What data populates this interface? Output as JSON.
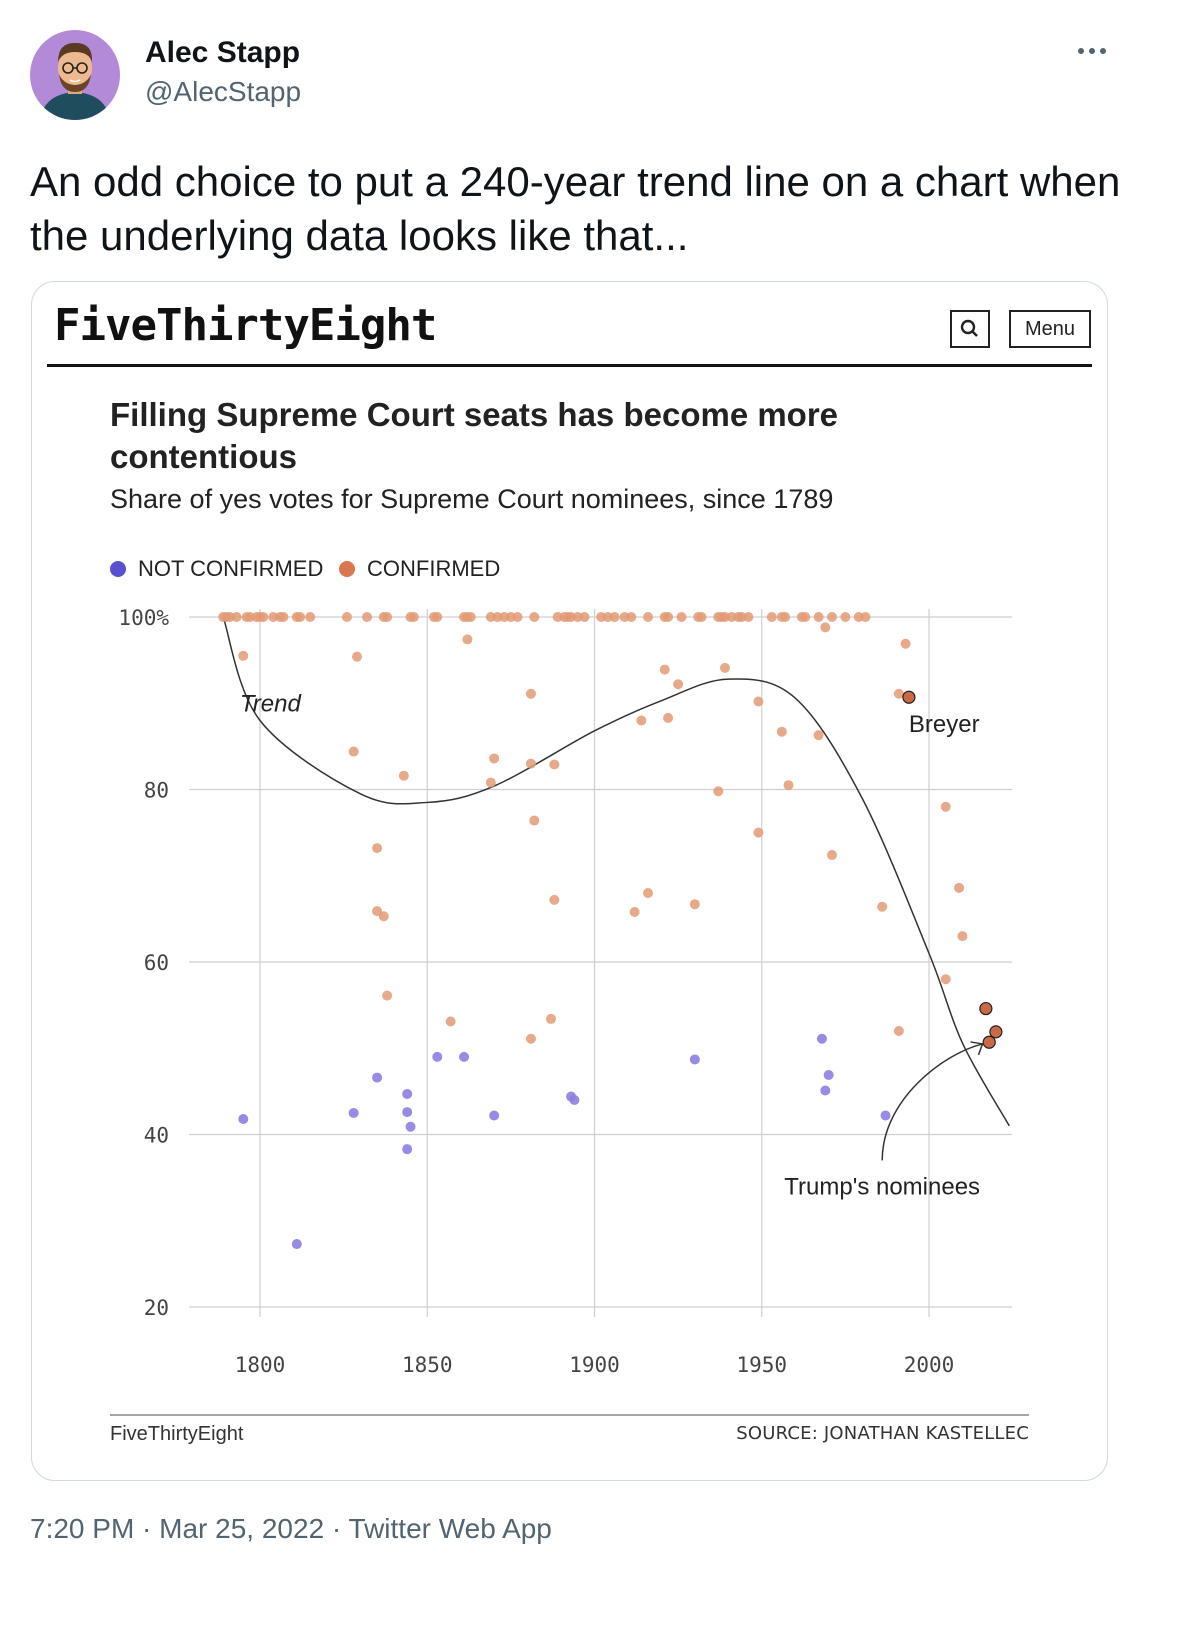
{
  "tweet": {
    "user_name": "Alec Stapp",
    "user_handle": "@AlecStapp",
    "more_icon": "more-horizontal-icon",
    "text": "An odd choice to put a 240-year trend line on a chart when the underlying data looks like that...",
    "timestamp": "7:20 PM · Mar 25, 2022 · Twitter Web App"
  },
  "card": {
    "brand": "FiveThirtyEight",
    "search_icon": "search-icon",
    "menu_label": "Menu",
    "footer_brand": "FiveThirtyEight",
    "footer_source": "SOURCE: JONATHAN KASTELLEC"
  },
  "colors": {
    "confirmed": "#e29a74",
    "not_confirmed": "#8b7fe0",
    "legend_not_confirmed": "#5b4fd1",
    "legend_confirmed": "#d9784e",
    "highlight": "#c76a45"
  },
  "chart_data": {
    "type": "scatter",
    "title": "Filling Supreme Court seats has become more contentious",
    "subtitle": "Share of yes votes for Supreme Court nominees, since 1789",
    "legend": [
      "NOT CONFIRMED",
      "CONFIRMED"
    ],
    "legend_placement": "top-left",
    "xlim": [
      1779,
      2025
    ],
    "ylim": [
      20,
      100
    ],
    "x_ticks": [
      "1800",
      "1850",
      "1900",
      "1950",
      "2000"
    ],
    "y_ticks": [
      "100%",
      "80",
      "60",
      "40",
      "20"
    ],
    "grid": true,
    "series": [
      {
        "name": "CONFIRMED",
        "points": [
          [
            1789,
            100
          ],
          [
            1790,
            100
          ],
          [
            1791,
            100
          ],
          [
            1793,
            100
          ],
          [
            1796,
            100
          ],
          [
            1797,
            100
          ],
          [
            1799,
            100
          ],
          [
            1800,
            100
          ],
          [
            1801,
            100
          ],
          [
            1804,
            100
          ],
          [
            1806,
            100
          ],
          [
            1807,
            100
          ],
          [
            1811,
            100
          ],
          [
            1812,
            100
          ],
          [
            1815,
            100
          ],
          [
            1826,
            100
          ],
          [
            1832,
            100
          ],
          [
            1837,
            100
          ],
          [
            1838,
            100
          ],
          [
            1845,
            100
          ],
          [
            1846,
            100
          ],
          [
            1852,
            100
          ],
          [
            1853,
            100
          ],
          [
            1861,
            100
          ],
          [
            1862,
            100
          ],
          [
            1863,
            100
          ],
          [
            1869,
            100
          ],
          [
            1871,
            100
          ],
          [
            1873,
            100
          ],
          [
            1875,
            100
          ],
          [
            1877,
            100
          ],
          [
            1882,
            100
          ],
          [
            1889,
            100
          ],
          [
            1891,
            100
          ],
          [
            1892,
            100
          ],
          [
            1893,
            100
          ],
          [
            1895,
            100
          ],
          [
            1897,
            100
          ],
          [
            1902,
            100
          ],
          [
            1904,
            100
          ],
          [
            1906,
            100
          ],
          [
            1909,
            100
          ],
          [
            1911,
            100
          ],
          [
            1916,
            100
          ],
          [
            1921,
            100
          ],
          [
            1922,
            100
          ],
          [
            1926,
            100
          ],
          [
            1931,
            100
          ],
          [
            1932,
            100
          ],
          [
            1937,
            100
          ],
          [
            1938,
            100
          ],
          [
            1939,
            100
          ],
          [
            1941,
            100
          ],
          [
            1943,
            100
          ],
          [
            1944,
            100
          ],
          [
            1946,
            100
          ],
          [
            1953,
            100
          ],
          [
            1956,
            100
          ],
          [
            1957,
            100
          ],
          [
            1962,
            100
          ],
          [
            1963,
            100
          ],
          [
            1967,
            100
          ],
          [
            1971,
            100
          ],
          [
            1975,
            100
          ],
          [
            1979,
            100
          ],
          [
            1981,
            100
          ],
          [
            1969,
            98.8
          ],
          [
            1993,
            96.9
          ],
          [
            1862,
            97.4
          ],
          [
            1795,
            95.5
          ],
          [
            1829,
            95.4
          ],
          [
            1921,
            93.9
          ],
          [
            1939,
            94.1
          ],
          [
            1925,
            92.2
          ],
          [
            1881,
            91.1
          ],
          [
            1991,
            91.1
          ],
          [
            1994,
            90.7
          ],
          [
            1949,
            90.2
          ],
          [
            1914,
            88.0
          ],
          [
            1922,
            88.3
          ],
          [
            1956,
            86.7
          ],
          [
            1967,
            86.3
          ],
          [
            1870,
            83.6
          ],
          [
            1881,
            83.0
          ],
          [
            1888,
            82.9
          ],
          [
            1828,
            84.4
          ],
          [
            1843,
            81.6
          ],
          [
            1869,
            80.8
          ],
          [
            1958,
            80.5
          ],
          [
            1937,
            79.8
          ],
          [
            2005,
            78.0
          ],
          [
            1882,
            76.4
          ],
          [
            1949,
            75.0
          ],
          [
            1835,
            73.2
          ],
          [
            1971,
            72.4
          ],
          [
            2009,
            68.6
          ],
          [
            1916,
            68.0
          ],
          [
            1888,
            67.2
          ],
          [
            1930,
            66.7
          ],
          [
            1912,
            65.8
          ],
          [
            1835,
            65.9
          ],
          [
            1986,
            66.4
          ],
          [
            1837,
            65.3
          ],
          [
            2010,
            63.0
          ],
          [
            2005,
            58.0
          ],
          [
            1838,
            56.1
          ],
          [
            1857,
            53.1
          ],
          [
            1887,
            53.4
          ],
          [
            1991,
            52.0
          ],
          [
            1881,
            51.1
          ],
          [
            2017,
            54.6
          ],
          [
            2020,
            51.9
          ],
          [
            2018,
            50.7
          ]
        ]
      },
      {
        "name": "NOT CONFIRMED",
        "points": [
          [
            1795,
            41.8
          ],
          [
            1811,
            27.3
          ],
          [
            1828,
            42.5
          ],
          [
            1835,
            46.6
          ],
          [
            1844,
            44.7
          ],
          [
            1844,
            42.6
          ],
          [
            1845,
            40.9
          ],
          [
            1844,
            38.3
          ],
          [
            1853,
            49.0
          ],
          [
            1861,
            49.0
          ],
          [
            1870,
            42.2
          ],
          [
            1893,
            44.4
          ],
          [
            1894,
            44.0
          ],
          [
            1930,
            48.7
          ],
          [
            1968,
            51.1
          ],
          [
            1970,
            46.9
          ],
          [
            1969,
            45.1
          ],
          [
            1987,
            42.2
          ]
        ]
      }
    ],
    "trend": [
      [
        1789,
        100
      ],
      [
        1800,
        88
      ],
      [
        1830,
        79.5
      ],
      [
        1850,
        78.5
      ],
      [
        1870,
        80.4
      ],
      [
        1900,
        86.8
      ],
      [
        1920,
        90.3
      ],
      [
        1940,
        92.8
      ],
      [
        1960,
        90.6
      ],
      [
        1980,
        79.0
      ],
      [
        2000,
        61
      ],
      [
        2010,
        50.6
      ],
      [
        2024,
        41
      ]
    ],
    "annotations": [
      {
        "text": "Trend",
        "x": 1794,
        "y": 90
      },
      {
        "text": "Breyer",
        "x": 1994,
        "y": 90.7
      },
      {
        "text": "Trump's nominees",
        "x": 1986,
        "y": 34
      }
    ]
  }
}
